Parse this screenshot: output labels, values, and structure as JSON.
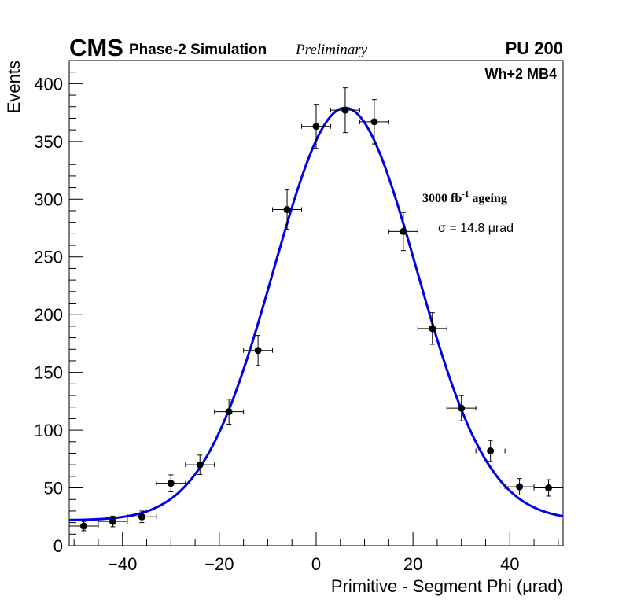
{
  "chart_data": {
    "type": "scatter",
    "title": "",
    "header": {
      "experiment": "CMS",
      "simulation": "Phase-2 Simulation",
      "status": "Preliminary",
      "pileup": "PU 200"
    },
    "annotations": {
      "station": "Wh+2 MB4",
      "ageing_prefix": "3000 fb",
      "ageing_exp": "-1",
      "ageing_suffix": " ageing",
      "sigma": "σ = 14.8 μrad"
    },
    "xlabel": "Primitive - Segment Phi (μrad)",
    "ylabel": "Events",
    "xlim": [
      -51,
      51
    ],
    "ylim": [
      0,
      420
    ],
    "xticks": [
      {
        "value": -40,
        "label": "−40"
      },
      {
        "value": -20,
        "label": "−20"
      },
      {
        "value": 0,
        "label": "0"
      },
      {
        "value": 20,
        "label": "20"
      },
      {
        "value": 40,
        "label": "40"
      }
    ],
    "yticks": [
      {
        "value": 0,
        "label": "0"
      },
      {
        "value": 50,
        "label": "50"
      },
      {
        "value": 100,
        "label": "100"
      },
      {
        "value": 150,
        "label": "150"
      },
      {
        "value": 200,
        "label": "200"
      },
      {
        "value": 250,
        "label": "250"
      },
      {
        "value": 300,
        "label": "300"
      },
      {
        "value": 350,
        "label": "350"
      },
      {
        "value": 400,
        "label": "400"
      }
    ],
    "series": [
      {
        "name": "data",
        "bin_half_width": 3,
        "x": [
          -48,
          -42,
          -36,
          -30,
          -24,
          -18,
          -12,
          -6,
          0,
          6,
          12,
          18,
          24,
          30,
          36,
          42,
          48
        ],
        "y": [
          17,
          21,
          25,
          54,
          70,
          116,
          169,
          291,
          363,
          377,
          367,
          272,
          188,
          119,
          82,
          51,
          50
        ],
        "yerr": [
          4,
          4.6,
          5,
          7.3,
          8.4,
          10.8,
          13,
          17.1,
          19.1,
          19.4,
          19.2,
          16.5,
          13.7,
          10.9,
          9.1,
          7.1,
          7.1
        ]
      },
      {
        "name": "gaussian fit",
        "color": "#0000e6",
        "function": "gaussian+constant",
        "mean": 6,
        "sigma": 14.8,
        "amplitude": 357,
        "constant": 22
      }
    ]
  }
}
